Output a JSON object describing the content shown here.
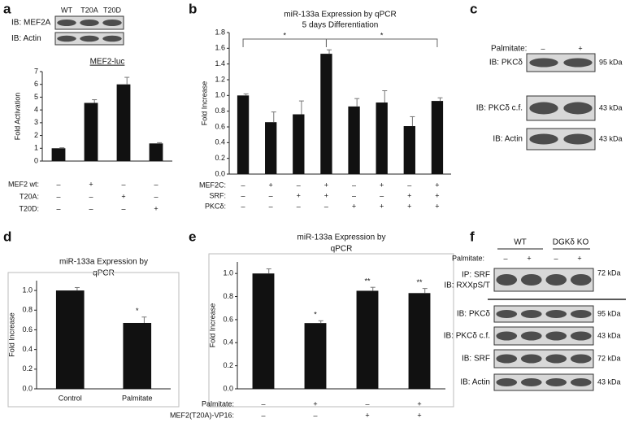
{
  "panel_labels": [
    "a",
    "b",
    "c",
    "d",
    "e",
    "f"
  ],
  "chart_data": [
    {
      "type": "bar",
      "title": "MEF2-luc",
      "ylabel": "Fold Activation",
      "ylim": [
        0,
        7
      ],
      "yticks": [
        0,
        1,
        2,
        3,
        4,
        5,
        6,
        7
      ],
      "values": [
        1.0,
        4.55,
        6.0,
        1.38
      ],
      "errors": [
        0.04,
        0.25,
        0.55,
        0.06
      ],
      "color": "#111111",
      "conditions": [
        {
          "name": "MEF2 wt:",
          "signs": [
            "–",
            "+",
            "–",
            "–"
          ]
        },
        {
          "name": "T20A:",
          "signs": [
            "–",
            "–",
            "+",
            "–"
          ]
        },
        {
          "name": "T20D:",
          "signs": [
            "–",
            "–",
            "–",
            "+"
          ]
        }
      ]
    },
    {
      "type": "bar",
      "title": "miR-133a Expression by qPCR",
      "subtitle": "5 days Differentiation",
      "ylabel": "Fold Increase",
      "ylim": [
        0,
        1.8
      ],
      "yticks": [
        {
          "value": 0,
          "label": "0.0"
        },
        0.2,
        0.4,
        0.6,
        0.8,
        {
          "value": 1,
          "label": "1.0"
        },
        1.2,
        1.4,
        1.6,
        1.8
      ],
      "values": [
        1.0,
        0.66,
        0.76,
        1.53,
        0.86,
        0.91,
        0.61,
        0.93
      ],
      "errors": [
        0.02,
        0.13,
        0.17,
        0.05,
        0.1,
        0.15,
        0.12,
        0.04
      ],
      "color": "#111111",
      "annotations": [
        "*",
        "*"
      ],
      "conditions": [
        {
          "name": "MEF2C:",
          "signs": [
            "–",
            "+",
            "–",
            "+",
            "–",
            "+",
            "–",
            "+"
          ]
        },
        {
          "name": "SRF:",
          "signs": [
            "–",
            "–",
            "+",
            "+",
            "–",
            "–",
            "+",
            "+"
          ]
        },
        {
          "name": "PKCδ:",
          "signs": [
            "–",
            "–",
            "–",
            "–",
            "+",
            "+",
            "+",
            "+"
          ]
        }
      ]
    },
    {
      "type": "bar",
      "title": [
        "miR-133a Expression by",
        "qPCR"
      ],
      "ylabel": "Fold Increase",
      "categories": [
        "Control",
        "Palmitate"
      ],
      "ylim": [
        0,
        1.1
      ],
      "yticks": [
        {
          "value": 0,
          "label": "0.0"
        },
        0.2,
        0.4,
        0.6,
        0.8,
        {
          "value": 1,
          "label": "1.0"
        }
      ],
      "values": [
        1.0,
        0.67
      ],
      "errors": [
        0.03,
        0.06
      ],
      "color": "#111111",
      "value_annotations": [
        null,
        "*"
      ]
    },
    {
      "type": "bar",
      "title": [
        "miR-133a Expression by",
        "qPCR"
      ],
      "ylabel": "Fold Increase",
      "ylim": [
        0,
        1.1
      ],
      "yticks": [
        {
          "value": 0,
          "label": "0.0"
        },
        0.2,
        0.4,
        0.6,
        0.8,
        {
          "value": 1,
          "label": "1.0"
        }
      ],
      "values": [
        1.0,
        0.57,
        0.85,
        0.83
      ],
      "errors": [
        0.04,
        0.02,
        0.03,
        0.04
      ],
      "color": "#111111",
      "value_annotations": [
        null,
        "*",
        "**",
        "**"
      ],
      "conditions": [
        {
          "name": "Palmitate:",
          "signs": [
            "–",
            "+",
            "–",
            "+"
          ]
        },
        {
          "name": "MEF2(T20A)-VP16:",
          "signs": [
            "–",
            "–",
            "+",
            "+"
          ]
        }
      ]
    }
  ],
  "blots": {
    "a": {
      "lanes": [
        "WT",
        "T20A",
        "T20D"
      ],
      "rows": [
        {
          "label": "IB: MEF2A"
        },
        {
          "label": "IB: Actin"
        }
      ]
    },
    "c": {
      "treatment": "Palmitate:",
      "lanes": [
        "–",
        "+"
      ],
      "rows": [
        {
          "label": "IB: PKCδ",
          "size": "95 kDa"
        },
        {
          "label": "IB: PKCδ c.f.",
          "size": "43 kDa"
        },
        {
          "label": "IB: Actin",
          "size": "43 kDa"
        }
      ]
    },
    "f": {
      "groups": [
        "WT",
        "DGKδ KO"
      ],
      "treatment": "Palmitate:",
      "lanes": [
        "–",
        "+",
        "–",
        "+"
      ],
      "rows": [
        {
          "label": [
            "IP: SRF",
            "IB: RXXpS/T"
          ],
          "size": "72 kDa"
        },
        {
          "label": "IB: PKCδ",
          "size": "95 kDa"
        },
        {
          "label": "IB: PKCδ c.f.",
          "size": "43 kDa"
        },
        {
          "label": "IB: SRF",
          "size": "72 kDa"
        },
        {
          "label": "IB: Actin",
          "size": "43 kDa"
        }
      ]
    }
  }
}
